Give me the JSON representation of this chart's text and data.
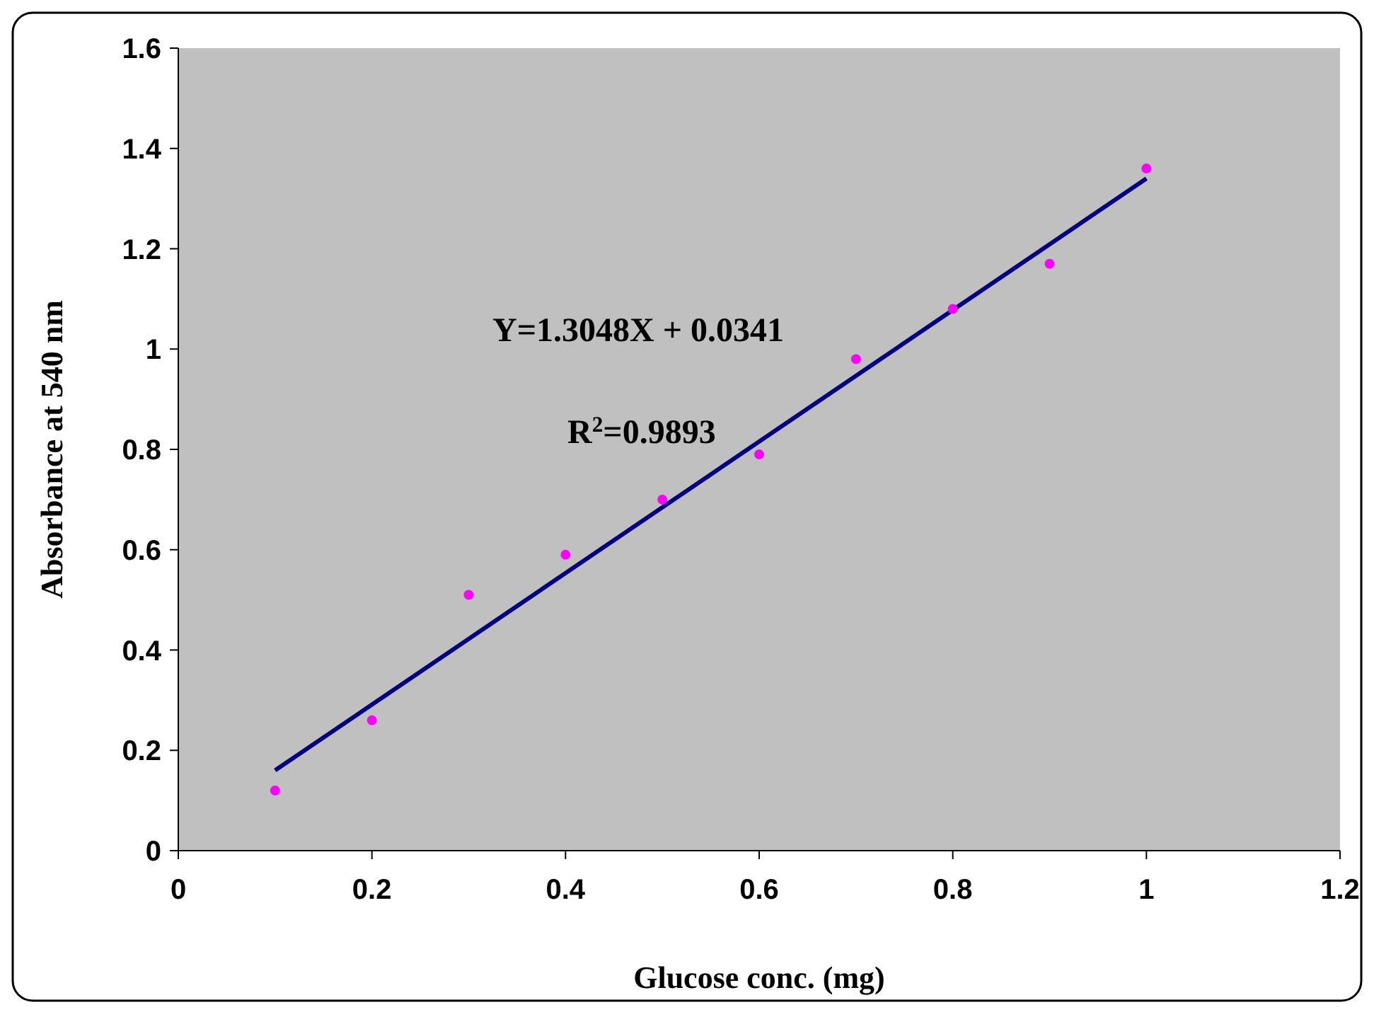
{
  "chart_data": {
    "type": "scatter",
    "xlabel": "Glucose conc. (mg)",
    "ylabel": "Absorbance at 540 nm",
    "x": [
      0.1,
      0.2,
      0.3,
      0.4,
      0.5,
      0.6,
      0.7,
      0.8,
      0.9,
      1.0
    ],
    "series": [
      {
        "color": "#ff00ff",
        "marker": "circle",
        "values": [
          0.12,
          0.26,
          0.51,
          0.59,
          0.7,
          0.79,
          0.98,
          1.08,
          1.17,
          1.36
        ]
      },
      {
        "type": "line",
        "color": "#000080",
        "x": [
          0.1,
          1.0
        ],
        "values": [
          0.16,
          1.34
        ]
      }
    ],
    "grid": false,
    "legend": false,
    "xlim": [
      0,
      1.2
    ],
    "xticks": [
      0,
      0.2,
      0.4,
      0.6,
      0.8,
      1,
      1.2
    ],
    "ylim": [
      0,
      1.6
    ],
    "yticks": [
      0,
      0.2,
      0.4,
      0.6,
      0.8,
      1,
      1.2,
      1.4,
      1.6
    ],
    "annotations": [
      "Y=1.3048X + 0.0341",
      "R$^{2}$=0.9893"
    ]
  }
}
